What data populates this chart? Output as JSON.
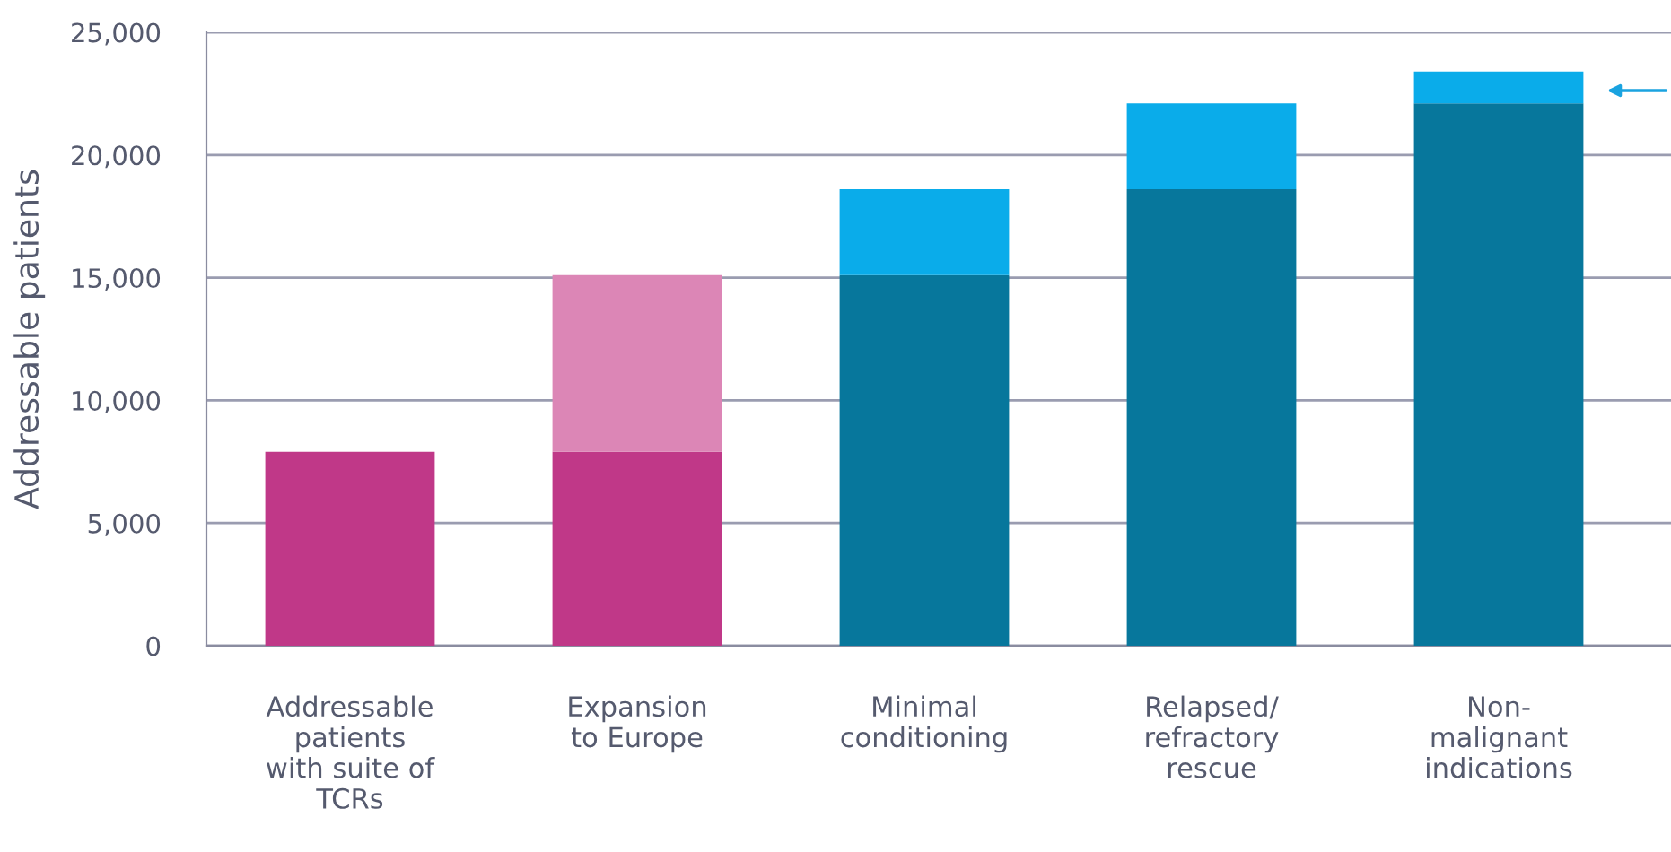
{
  "chart_data": {
    "type": "bar",
    "stacked": true,
    "ylabel": "Addressable patients",
    "categories": [
      "Addressable\npatients\nwith suite of\nTCRs",
      "Expansion\nto Europe",
      "Minimal\nconditioning",
      "Relapsed/\nrefractory\nrescue",
      "Non-\nmalignant\nindications"
    ],
    "series": [
      {
        "values": [
          7900,
          7900,
          15100,
          18600,
          22100
        ],
        "colors": [
          "#c03888",
          "#c03888",
          "#07779c",
          "#07779c",
          "#07779c"
        ]
      },
      {
        "values": [
          null,
          7200,
          3500,
          3500,
          1300
        ],
        "colors": [
          null,
          "#dc86b6",
          "#0aacea",
          "#0aacea",
          "#0aacea"
        ]
      }
    ],
    "ylim": [
      0,
      25000
    ],
    "yticks": [
      {
        "value": 0,
        "label": "0"
      },
      {
        "value": 5000,
        "label": "5,000"
      },
      {
        "value": 10000,
        "label": "10,000"
      },
      {
        "value": 15000,
        "label": "15,000"
      },
      {
        "value": 20000,
        "label": "20,000"
      },
      {
        "value": 25000,
        "label": "25,000"
      }
    ],
    "grid": "y"
  }
}
